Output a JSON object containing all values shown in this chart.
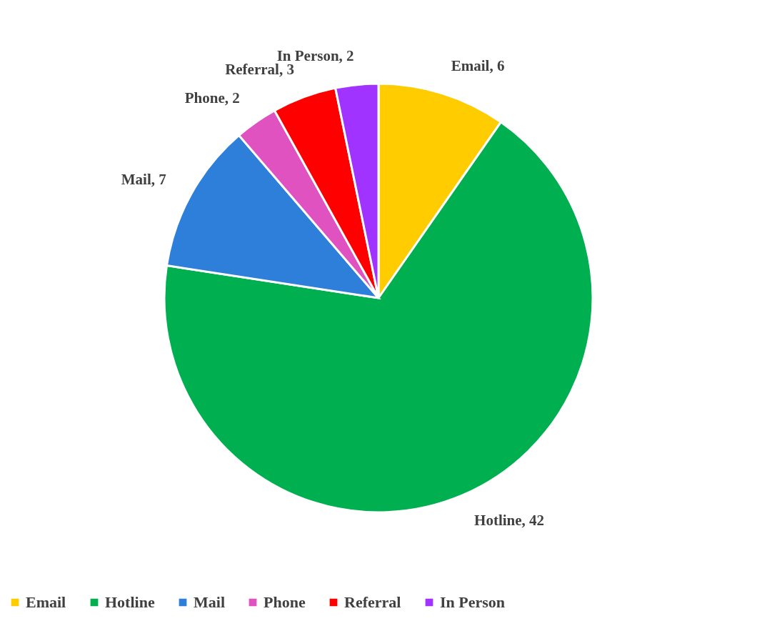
{
  "chart_data": {
    "type": "pie",
    "categories": [
      "Email",
      "Hotline",
      "Mail",
      "Phone",
      "Referral",
      "In Person"
    ],
    "values": [
      6,
      42,
      7,
      2,
      3,
      2
    ],
    "colors": [
      "#ffcc00",
      "#00b050",
      "#2e7fd9",
      "#e052c0",
      "#ff0000",
      "#a033ff"
    ],
    "value_labels": [
      "Email, 6",
      "Hotline, 42",
      "Mail, 7",
      "Phone, 2",
      "Referral, 3",
      "In Person, 2"
    ],
    "legend": "bottom"
  }
}
